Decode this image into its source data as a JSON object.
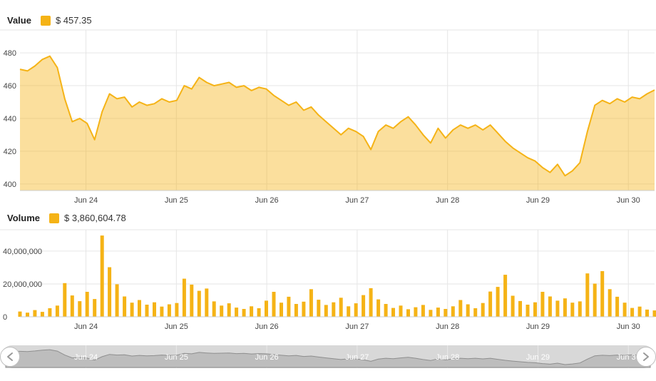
{
  "colors": {
    "accent": "#f5b316",
    "area_fill": "rgba(245,179,22,0.42)",
    "grid": "#e6e6e6",
    "axis_line": "#cccccc",
    "tick_text": "#444444",
    "nav_track": "#d8d8d8",
    "nav_fill": "#bdbdbd",
    "nav_line": "#8e8e8e",
    "nav_label": "#ffffff",
    "handle_fill": "#ffffff",
    "handle_border": "#c0c0c0",
    "handle_arrow": "#999999"
  },
  "value_chart": {
    "label": "Value",
    "legend_value": "$ 457.35"
  },
  "volume_chart": {
    "label": "Volume",
    "legend_value": "$ 3,860,604.78"
  },
  "navigator": {
    "labels": [
      "Jun 24",
      "Jun 25",
      "Jun 26",
      "Jun 27",
      "Jun 28",
      "Jun 29",
      "Jun 30"
    ]
  },
  "chart_data": [
    {
      "type": "area",
      "name": "Value",
      "title": "Value",
      "legend_label": "$ 457.35",
      "legend_position": "top-left",
      "grid": true,
      "x_unit": "days from Jun 24 00:00",
      "x_range": [
        -0.73,
        6.29
      ],
      "x_tick_positions": [
        0,
        1,
        2,
        3,
        4,
        5,
        6
      ],
      "x_tick_labels": [
        "Jun 24",
        "Jun 25",
        "Jun 26",
        "Jun 27",
        "Jun 28",
        "Jun 29",
        "Jun 30"
      ],
      "y_ticks": [
        400,
        420,
        440,
        460,
        480
      ],
      "y_tick_labels": [
        "400",
        "420",
        "440",
        "460",
        "480"
      ],
      "ylim": [
        396,
        494
      ],
      "values": [
        470,
        469,
        472,
        476,
        478,
        471,
        452,
        438,
        440,
        437,
        427,
        444,
        455,
        452,
        453,
        447,
        450,
        448,
        449,
        452,
        450,
        451,
        460,
        458,
        465,
        462,
        460,
        461,
        462,
        459,
        460,
        457,
        459,
        458,
        454,
        451,
        448,
        450,
        445,
        447,
        442,
        438,
        434,
        430,
        434,
        432,
        429,
        421,
        432,
        436,
        434,
        438,
        441,
        436,
        430,
        425,
        434,
        428,
        433,
        436,
        434,
        436,
        433,
        436,
        431,
        426,
        422,
        419,
        416,
        414,
        410,
        407,
        412,
        405,
        408,
        413,
        432,
        448,
        451,
        449,
        452,
        450,
        453,
        452,
        455,
        457.35
      ]
    },
    {
      "type": "bar",
      "name": "Volume",
      "title": "Volume",
      "legend_label": "$ 3,860,604.78",
      "legend_position": "top-left",
      "grid": true,
      "x_unit": "days from Jun 24 00:00",
      "x_range": [
        -0.73,
        6.29
      ],
      "x_tick_positions": [
        0,
        1,
        2,
        3,
        4,
        5,
        6
      ],
      "x_tick_labels": [
        "Jun 24",
        "Jun 25",
        "Jun 26",
        "Jun 27",
        "Jun 28",
        "Jun 29",
        "Jun 30"
      ],
      "y_ticks": [
        0,
        20000000,
        40000000
      ],
      "y_tick_labels": [
        "0",
        "20,000,000",
        "40,000,000"
      ],
      "ylim": [
        0,
        53000000
      ],
      "values": [
        3200000,
        2500000,
        4100000,
        3000000,
        5200000,
        6800000,
        20500000,
        13000000,
        9500000,
        15200000,
        10800000,
        49500000,
        30200000,
        19800000,
        12400000,
        8600000,
        10200000,
        7400000,
        8800000,
        6200000,
        7600000,
        8400000,
        23200000,
        19600000,
        15800000,
        17200000,
        9400000,
        6800000,
        8200000,
        5600000,
        4800000,
        6400000,
        5200000,
        9800000,
        15200000,
        8600000,
        12200000,
        7800000,
        9200000,
        16800000,
        10400000,
        7200000,
        8800000,
        11600000,
        6400000,
        8200000,
        13200000,
        17400000,
        10600000,
        7800000,
        5400000,
        6800000,
        4600000,
        5800000,
        7200000,
        4200000,
        5600000,
        4800000,
        6400000,
        10200000,
        7600000,
        5200000,
        8400000,
        15400000,
        18200000,
        25600000,
        12800000,
        9600000,
        7400000,
        8800000,
        15200000,
        12400000,
        9800000,
        11200000,
        8600000,
        9400000,
        26400000,
        20200000,
        27800000,
        16800000,
        12200000,
        8600000,
        5400000,
        6200000,
        4400000,
        3860604.78
      ]
    },
    {
      "type": "area",
      "role": "navigator",
      "series_ref": 0,
      "x_tick_labels": [
        "Jun 24",
        "Jun 25",
        "Jun 26",
        "Jun 27",
        "Jun 28",
        "Jun 29",
        "Jun 30"
      ]
    }
  ]
}
